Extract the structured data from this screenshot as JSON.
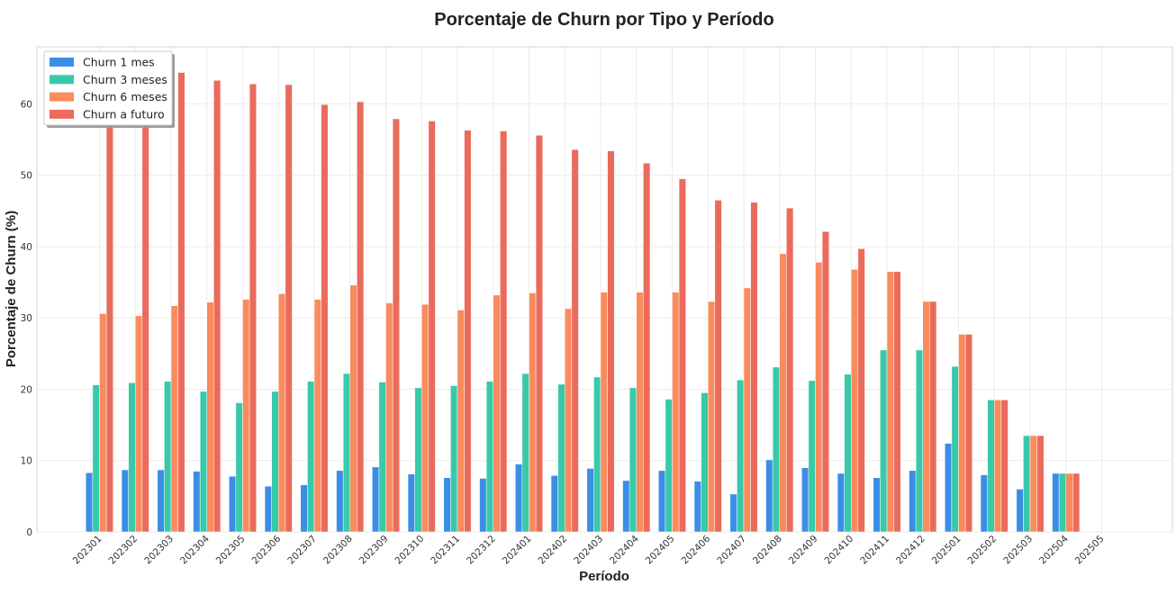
{
  "chart_data": {
    "type": "bar",
    "title": "Porcentaje de Churn por Tipo y Período",
    "xlabel": "Período",
    "ylabel": "Porcentaje de Churn (%)",
    "ylim": [
      0,
      68
    ],
    "yticks": [
      0,
      10,
      20,
      30,
      40,
      50,
      60
    ],
    "grid": true,
    "legend_position": "top-left",
    "categories": [
      "202301",
      "202302",
      "202303",
      "202304",
      "202305",
      "202306",
      "202307",
      "202308",
      "202309",
      "202310",
      "202311",
      "202312",
      "202401",
      "202402",
      "202403",
      "202404",
      "202405",
      "202406",
      "202407",
      "202408",
      "202409",
      "202410",
      "202411",
      "202412",
      "202501",
      "202502",
      "202503",
      "202504",
      "202505"
    ],
    "series": [
      {
        "name": "Churn 1 mes",
        "color": "#3a8ee6",
        "values": [
          8.3,
          8.7,
          8.7,
          8.5,
          7.8,
          6.4,
          6.6,
          8.6,
          9.1,
          8.1,
          7.6,
          7.5,
          9.5,
          7.9,
          8.9,
          7.2,
          8.6,
          7.1,
          5.3,
          10.1,
          9.0,
          8.2,
          7.6,
          8.6,
          12.4,
          8.0,
          6.0,
          8.2,
          0
        ]
      },
      {
        "name": "Churn 3 meses",
        "color": "#37c9a9",
        "values": [
          20.6,
          20.9,
          21.1,
          19.7,
          18.1,
          19.7,
          21.1,
          22.2,
          21.0,
          20.2,
          20.5,
          21.1,
          22.2,
          20.7,
          21.7,
          20.2,
          18.6,
          19.5,
          21.3,
          23.1,
          21.2,
          22.1,
          25.5,
          25.5,
          23.2,
          18.5,
          13.5,
          8.2,
          0
        ]
      },
      {
        "name": "Churn 6 meses",
        "color": "#fa8b5d",
        "values": [
          30.6,
          30.3,
          31.7,
          32.2,
          32.6,
          33.4,
          32.6,
          34.6,
          32.1,
          31.9,
          31.1,
          33.2,
          33.5,
          31.3,
          33.6,
          33.6,
          33.6,
          32.3,
          34.2,
          39.0,
          37.8,
          36.8,
          36.5,
          32.3,
          27.7,
          18.5,
          13.5,
          8.2,
          0
        ]
      },
      {
        "name": "Churn a futuro",
        "color": "#ea6b5c",
        "values": [
          58.1,
          58.2,
          64.4,
          63.3,
          62.8,
          62.7,
          59.9,
          60.3,
          57.9,
          57.6,
          56.3,
          56.2,
          55.6,
          53.6,
          53.4,
          51.7,
          49.5,
          46.5,
          46.2,
          45.4,
          42.1,
          39.7,
          36.5,
          32.3,
          27.7,
          18.5,
          13.5,
          8.2,
          0
        ]
      }
    ]
  }
}
